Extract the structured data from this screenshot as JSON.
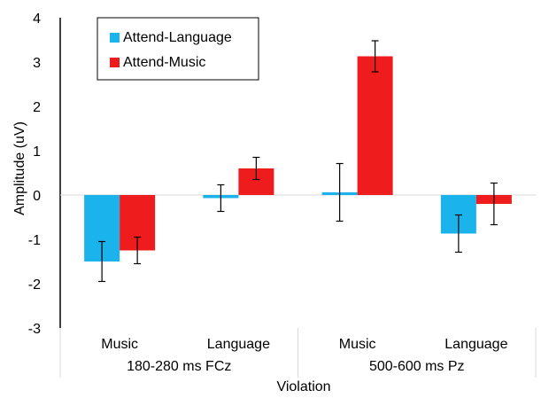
{
  "chart_data": {
    "type": "bar",
    "title": "",
    "xlabel": "Violation",
    "ylabel": "Amplitude (uV)",
    "ylim": [
      -3,
      4
    ],
    "yticks": [
      "-3",
      "-2",
      "-1",
      "0",
      "1",
      "2",
      "3",
      "4"
    ],
    "grid": false,
    "legend_position": "top-left",
    "groups": [
      {
        "label": "180-280 ms FCz",
        "categories": [
          "Music",
          "Language"
        ]
      },
      {
        "label": "500-600 ms Pz",
        "categories": [
          "Music",
          "Language"
        ]
      }
    ],
    "categories": [
      "Music",
      "Language",
      "Music",
      "Language"
    ],
    "series": [
      {
        "name": "Attend-Language",
        "color": "#1bb3ec",
        "values": [
          -1.5,
          -0.07,
          0.06,
          -0.87
        ],
        "error": [
          0.45,
          0.3,
          0.65,
          0.42
        ]
      },
      {
        "name": "Attend-Music",
        "color": "#ee1c1c",
        "values": [
          -1.25,
          0.6,
          3.13,
          -0.2
        ],
        "error": [
          0.3,
          0.25,
          0.35,
          0.47
        ]
      }
    ]
  }
}
